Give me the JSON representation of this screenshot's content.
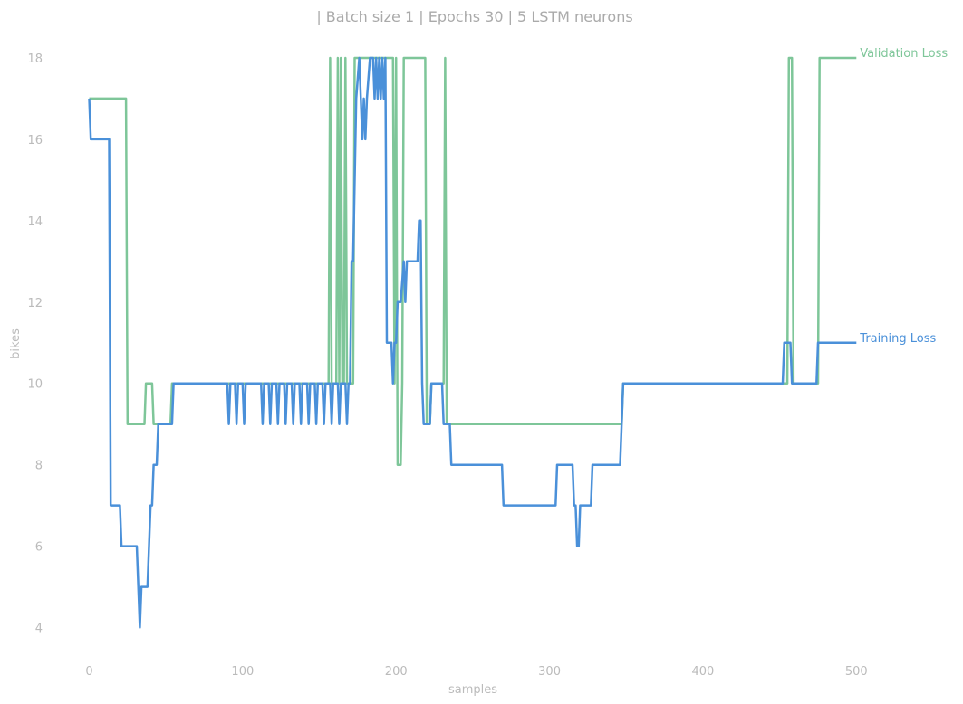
{
  "chart_data": {
    "type": "line",
    "title": "| Batch size 1 | Epochs 30 |  5 LSTM neurons",
    "xlabel": "samples",
    "ylabel": "bikes",
    "xlim": [
      -18,
      563
    ],
    "ylim": [
      3.1,
      18.8
    ],
    "xticks": [
      "0",
      "100",
      "200",
      "300",
      "400",
      "500"
    ],
    "xtick_values": [
      0,
      100,
      200,
      300,
      400,
      500
    ],
    "yticks": [
      "4",
      "6",
      "8",
      "10",
      "12",
      "14",
      "16",
      "18"
    ],
    "ytick_values": [
      4,
      6,
      8,
      10,
      12,
      14,
      16,
      18
    ],
    "grid": false,
    "legend": "inline labels at line ends",
    "series": [
      {
        "name": "Training Loss",
        "color": "#4a90d9",
        "points": [
          [
            0,
            17
          ],
          [
            1,
            16
          ],
          [
            13,
            16
          ],
          [
            14,
            7
          ],
          [
            20,
            7
          ],
          [
            21,
            6
          ],
          [
            31,
            6
          ],
          [
            33,
            4
          ],
          [
            34,
            5
          ],
          [
            38,
            5
          ],
          [
            39,
            6
          ],
          [
            40,
            7
          ],
          [
            41,
            7
          ],
          [
            42,
            8
          ],
          [
            44,
            8
          ],
          [
            45,
            9
          ],
          [
            54,
            9
          ],
          [
            55,
            10
          ],
          [
            90,
            10
          ],
          [
            91,
            9
          ],
          [
            92,
            10
          ],
          [
            95,
            10
          ],
          [
            96,
            9
          ],
          [
            97,
            10
          ],
          [
            100,
            10
          ],
          [
            101,
            9
          ],
          [
            102,
            10
          ],
          [
            112,
            10
          ],
          [
            113,
            9
          ],
          [
            114,
            10
          ],
          [
            117,
            10
          ],
          [
            118,
            9
          ],
          [
            119,
            10
          ],
          [
            122,
            10
          ],
          [
            123,
            9
          ],
          [
            124,
            10
          ],
          [
            127,
            10
          ],
          [
            128,
            9
          ],
          [
            129,
            10
          ],
          [
            132,
            10
          ],
          [
            133,
            9
          ],
          [
            134,
            10
          ],
          [
            137,
            10
          ],
          [
            138,
            9
          ],
          [
            139,
            10
          ],
          [
            142,
            10
          ],
          [
            143,
            9
          ],
          [
            144,
            10
          ],
          [
            147,
            10
          ],
          [
            148,
            9
          ],
          [
            149,
            10
          ],
          [
            152,
            10
          ],
          [
            153,
            9
          ],
          [
            154,
            10
          ],
          [
            157,
            10
          ],
          [
            158,
            9
          ],
          [
            159,
            10
          ],
          [
            162,
            10
          ],
          [
            163,
            9
          ],
          [
            164,
            10
          ],
          [
            167,
            10
          ],
          [
            168,
            9
          ],
          [
            169,
            10
          ],
          [
            170,
            10
          ],
          [
            171,
            13
          ],
          [
            172,
            13
          ],
          [
            174,
            17
          ],
          [
            176,
            18
          ],
          [
            177,
            17
          ],
          [
            178,
            16
          ],
          [
            179,
            17
          ],
          [
            180,
            16
          ],
          [
            181,
            17
          ],
          [
            183,
            18
          ],
          [
            185,
            18
          ],
          [
            186,
            17
          ],
          [
            187,
            18
          ],
          [
            188,
            17
          ],
          [
            189,
            18
          ],
          [
            190,
            17
          ],
          [
            191,
            18
          ],
          [
            192,
            17
          ],
          [
            193,
            18
          ],
          [
            194,
            11
          ],
          [
            197,
            11
          ],
          [
            198,
            10
          ],
          [
            199,
            11
          ],
          [
            200,
            11
          ],
          [
            201,
            12
          ],
          [
            203,
            12
          ],
          [
            205,
            13
          ],
          [
            206,
            12
          ],
          [
            207,
            13
          ],
          [
            214,
            13
          ],
          [
            215,
            14
          ],
          [
            216,
            14
          ],
          [
            217,
            10
          ],
          [
            218,
            9
          ],
          [
            222,
            9
          ],
          [
            223,
            10
          ],
          [
            230,
            10
          ],
          [
            231,
            9
          ],
          [
            235,
            9
          ],
          [
            236,
            8
          ],
          [
            269,
            8
          ],
          [
            270,
            7
          ],
          [
            304,
            7
          ],
          [
            305,
            8
          ],
          [
            315,
            8
          ],
          [
            316,
            7
          ],
          [
            317,
            7
          ],
          [
            318,
            6
          ],
          [
            319,
            6
          ],
          [
            320,
            7
          ],
          [
            327,
            7
          ],
          [
            328,
            8
          ],
          [
            346,
            8
          ],
          [
            347,
            9
          ],
          [
            348,
            10
          ],
          [
            452,
            10
          ],
          [
            453,
            11
          ],
          [
            457,
            11
          ],
          [
            458,
            10
          ],
          [
            474,
            10
          ],
          [
            475,
            11
          ],
          [
            500,
            11
          ]
        ]
      },
      {
        "name": "Validation Loss",
        "color": "#7ec699",
        "points": [
          [
            0,
            17
          ],
          [
            24,
            17
          ],
          [
            25,
            9
          ],
          [
            36,
            9
          ],
          [
            37,
            10
          ],
          [
            41,
            10
          ],
          [
            42,
            9
          ],
          [
            53,
            9
          ],
          [
            54,
            10
          ],
          [
            156,
            10
          ],
          [
            157,
            18
          ],
          [
            158,
            10
          ],
          [
            161,
            10
          ],
          [
            162,
            18
          ],
          [
            163,
            10
          ],
          [
            164,
            18
          ],
          [
            165,
            10
          ],
          [
            166,
            10
          ],
          [
            167,
            18
          ],
          [
            168,
            10
          ],
          [
            172,
            10
          ],
          [
            173,
            18
          ],
          [
            198,
            18
          ],
          [
            199,
            10
          ],
          [
            200,
            18
          ],
          [
            201,
            8
          ],
          [
            203,
            8
          ],
          [
            204,
            10
          ],
          [
            205,
            18
          ],
          [
            219,
            18
          ],
          [
            220,
            9
          ],
          [
            222,
            9
          ],
          [
            223,
            10
          ],
          [
            231,
            10
          ],
          [
            232,
            18
          ],
          [
            233,
            9
          ],
          [
            347,
            9
          ],
          [
            348,
            10
          ],
          [
            455,
            10
          ],
          [
            456,
            18
          ],
          [
            458,
            18
          ],
          [
            459,
            10
          ],
          [
            475,
            10
          ],
          [
            476,
            18
          ],
          [
            500,
            18
          ]
        ]
      }
    ]
  }
}
